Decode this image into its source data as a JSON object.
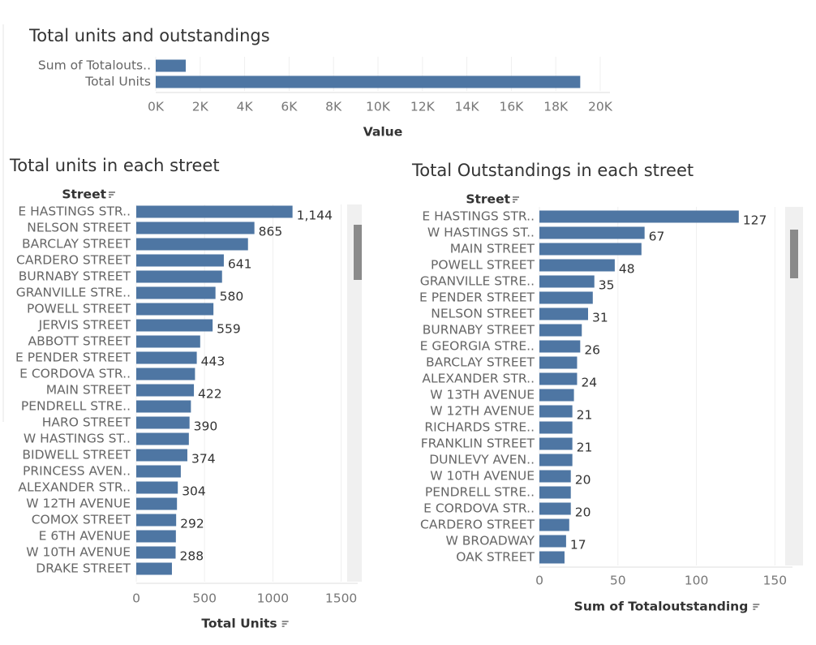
{
  "chart_data": [
    {
      "type": "bar",
      "orientation": "horizontal",
      "title": "Total units and outstandings",
      "categories": [
        "Sum of Totalouts..",
        "Total Units"
      ],
      "values": [
        1350,
        19100
      ],
      "color": "#4e76a3",
      "xlim": [
        0,
        20000
      ],
      "xticks": [
        {
          "value": 0,
          "label": "0K"
        },
        {
          "value": 2000,
          "label": "2K"
        },
        {
          "value": 4000,
          "label": "4K"
        },
        {
          "value": 6000,
          "label": "6K"
        },
        {
          "value": 8000,
          "label": "8K"
        },
        {
          "value": 10000,
          "label": "10K"
        },
        {
          "value": 12000,
          "label": "12K"
        },
        {
          "value": 14000,
          "label": "14K"
        },
        {
          "value": 16000,
          "label": "16K"
        },
        {
          "value": 18000,
          "label": "18K"
        },
        {
          "value": 20000,
          "label": "20K"
        }
      ],
      "x_label": "Value"
    },
    {
      "type": "bar",
      "orientation": "horizontal",
      "title": "Total units in each street",
      "y_label": "Street",
      "categories": [
        "E HASTINGS STR..",
        "NELSON STREET",
        "BARCLAY STREET",
        "CARDERO STREET",
        "BURNABY STREET",
        "GRANVILLE STRE..",
        "POWELL STREET",
        "JERVIS STREET",
        "ABBOTT STREET",
        "E PENDER STREET",
        "E CORDOVA STR..",
        "MAIN STREET",
        "PENDRELL STRE..",
        "HARO STREET",
        "W HASTINGS ST..",
        "BIDWELL STREET",
        "PRINCESS AVEN..",
        "ALEXANDER STR..",
        "W 12TH AVENUE",
        "COMOX STREET",
        "E 6TH AVENUE",
        "W 10TH AVENUE",
        "DRAKE STREET"
      ],
      "values": [
        1144,
        865,
        818,
        641,
        628,
        580,
        565,
        559,
        468,
        443,
        430,
        422,
        400,
        390,
        385,
        374,
        326,
        304,
        298,
        292,
        290,
        288,
        261
      ],
      "value_labels": [
        "1,144",
        "865",
        null,
        "641",
        null,
        "580",
        null,
        "559",
        null,
        "443",
        null,
        "422",
        null,
        "390",
        null,
        "374",
        null,
        "304",
        null,
        "292",
        null,
        "288",
        null
      ],
      "color": "#4e76a3",
      "xlim": [
        0,
        1550
      ],
      "xticks": [
        0,
        500,
        1000,
        1500
      ],
      "x_label": "Total Units"
    },
    {
      "type": "bar",
      "orientation": "horizontal",
      "title": "Total Outstandings in each street",
      "y_label": "Street",
      "categories": [
        "E HASTINGS STR..",
        "W HASTINGS ST..",
        "MAIN STREET",
        "POWELL STREET",
        "GRANVILLE STRE..",
        "E PENDER STREET",
        "NELSON STREET",
        "BURNABY STREET",
        "E GEORGIA STRE..",
        "BARCLAY STREET",
        "ALEXANDER STR..",
        "W 13TH AVENUE",
        "W 12TH AVENUE",
        "RICHARDS STRE..",
        "FRANKLIN STREET",
        "DUNLEVY AVEN..",
        "W 10TH AVENUE",
        "PENDRELL STRE..",
        "E CORDOVA STR..",
        "CARDERO STREET",
        "W BROADWAY",
        "OAK STREET"
      ],
      "values": [
        127,
        67,
        65,
        48,
        35,
        34,
        31,
        27,
        26,
        24,
        24,
        22,
        21,
        21,
        21,
        21,
        20,
        20,
        20,
        19,
        17,
        16
      ],
      "value_labels": [
        "127",
        "67",
        null,
        "48",
        "35",
        null,
        "31",
        null,
        "26",
        null,
        "24",
        null,
        "21",
        null,
        "21",
        null,
        "20",
        null,
        "20",
        null,
        "17",
        null
      ],
      "color": "#4e76a3",
      "xlim": [
        0,
        155
      ],
      "xticks": [
        0,
        50,
        100,
        150
      ],
      "x_label": "Sum of Totaloutstanding"
    }
  ]
}
